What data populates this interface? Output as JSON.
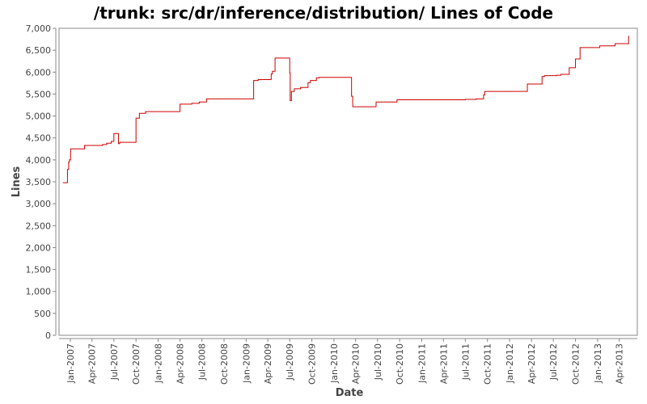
{
  "chart_data": {
    "type": "line",
    "title": "/trunk: src/dr/inference/distribution/ Lines of Code",
    "xlabel": "Date",
    "ylabel": "Lines",
    "ylim": [
      0,
      7000
    ],
    "xlim": [
      "2006-11-15",
      "2013-06-15"
    ],
    "y_ticks": [
      0,
      500,
      1000,
      1500,
      2000,
      2500,
      3000,
      3500,
      4000,
      4500,
      5000,
      5500,
      6000,
      6500,
      7000
    ],
    "y_tick_labels": [
      "0",
      "500",
      "1,000",
      "1,500",
      "2,000",
      "2,500",
      "3,000",
      "3,500",
      "4,000",
      "4,500",
      "5,000",
      "5,500",
      "6,000",
      "6,500",
      "7,000"
    ],
    "x_ticks": [
      "2007-01-01",
      "2007-04-01",
      "2007-07-01",
      "2007-10-01",
      "2008-01-01",
      "2008-04-01",
      "2008-07-01",
      "2008-10-01",
      "2009-01-01",
      "2009-04-01",
      "2009-07-01",
      "2009-10-01",
      "2010-01-01",
      "2010-04-01",
      "2010-07-01",
      "2010-10-01",
      "2011-01-01",
      "2011-04-01",
      "2011-07-01",
      "2011-10-01",
      "2012-01-01",
      "2012-04-01",
      "2012-07-01",
      "2012-10-01",
      "2013-01-01",
      "2013-04-01"
    ],
    "x_tick_labels": [
      "Jan-2007",
      "Apr-2007",
      "Jul-2007",
      "Oct-2007",
      "Jan-2008",
      "Apr-2008",
      "Jul-2008",
      "Oct-2008",
      "Jan-2009",
      "Apr-2009",
      "Jul-2009",
      "Oct-2009",
      "Jan-2010",
      "Apr-2010",
      "Jul-2010",
      "Oct-2010",
      "Jan-2011",
      "Apr-2011",
      "Jul-2011",
      "Oct-2011",
      "Jan-2012",
      "Apr-2012",
      "Jul-2012",
      "Oct-2012",
      "Jan-2013",
      "Apr-2013"
    ],
    "grid": false,
    "line_color": "#cc0000",
    "series": [
      {
        "step": true,
        "points": [
          [
            "2006-12-01",
            3480
          ],
          [
            "2006-12-20",
            3780
          ],
          [
            "2006-12-25",
            3950
          ],
          [
            "2006-12-28",
            4000
          ],
          [
            "2007-01-02",
            4250
          ],
          [
            "2007-03-01",
            4330
          ],
          [
            "2007-05-15",
            4350
          ],
          [
            "2007-06-01",
            4380
          ],
          [
            "2007-06-20",
            4420
          ],
          [
            "2007-07-01",
            4600
          ],
          [
            "2007-07-20",
            4370
          ],
          [
            "2007-07-25",
            4400
          ],
          [
            "2007-10-01",
            4950
          ],
          [
            "2007-10-15",
            5060
          ],
          [
            "2007-11-10",
            5100
          ],
          [
            "2008-04-01",
            5270
          ],
          [
            "2008-05-20",
            5290
          ],
          [
            "2008-06-20",
            5320
          ],
          [
            "2008-07-20",
            5390
          ],
          [
            "2009-02-01",
            5810
          ],
          [
            "2009-02-20",
            5830
          ],
          [
            "2009-04-15",
            5960
          ],
          [
            "2009-04-20",
            6020
          ],
          [
            "2009-05-01",
            6320
          ],
          [
            "2009-07-01",
            5980
          ],
          [
            "2009-07-03",
            5350
          ],
          [
            "2009-07-08",
            5560
          ],
          [
            "2009-07-20",
            5620
          ],
          [
            "2009-08-15",
            5650
          ],
          [
            "2009-09-15",
            5760
          ],
          [
            "2009-09-25",
            5810
          ],
          [
            "2009-10-20",
            5870
          ],
          [
            "2009-11-01",
            5880
          ],
          [
            "2010-03-15",
            5450
          ],
          [
            "2010-03-20",
            5210
          ],
          [
            "2010-06-25",
            5320
          ],
          [
            "2010-09-20",
            5370
          ],
          [
            "2011-07-01",
            5380
          ],
          [
            "2011-08-15",
            5390
          ],
          [
            "2011-09-15",
            5480
          ],
          [
            "2011-09-20",
            5560
          ],
          [
            "2012-03-15",
            5730
          ],
          [
            "2012-05-15",
            5900
          ],
          [
            "2012-05-25",
            5920
          ],
          [
            "2012-07-15",
            5930
          ],
          [
            "2012-08-01",
            5950
          ],
          [
            "2012-09-05",
            6100
          ],
          [
            "2012-10-01",
            6300
          ],
          [
            "2012-10-20",
            6560
          ],
          [
            "2013-01-10",
            6600
          ],
          [
            "2013-03-15",
            6650
          ],
          [
            "2013-05-10",
            6820
          ],
          [
            "2013-05-12",
            6820
          ]
        ]
      }
    ]
  }
}
